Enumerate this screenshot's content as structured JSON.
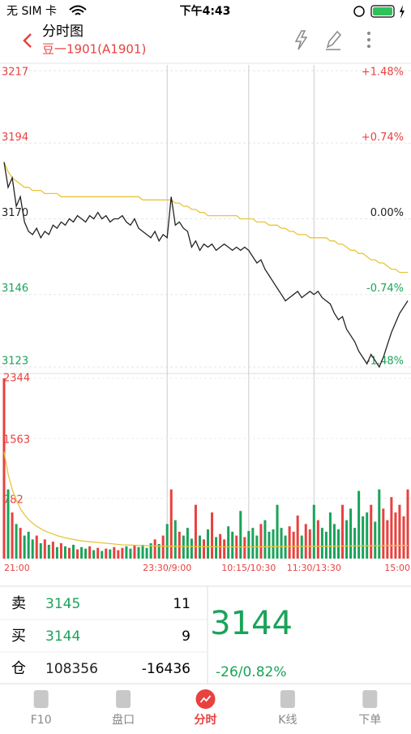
{
  "status_bar": {
    "carrier": "无 SIM 卡",
    "time": "下午4:43"
  },
  "header": {
    "title": "分时图",
    "subtitle": "豆一1901(A1901)"
  },
  "chart": {
    "ylim": [
      3123,
      3217
    ],
    "yticks": [
      3217,
      3194,
      3170,
      3146,
      3123
    ],
    "pct_labels": [
      "+1.48%",
      "+0.74%",
      "0.00%",
      "-0.74%",
      "-1.48%"
    ],
    "tick_colors": [
      "#e8413e",
      "#e8413e",
      "#222222",
      "#1aa35a",
      "#1aa35a"
    ],
    "xticks": [
      {
        "value": 0,
        "label": "21:00"
      },
      {
        "value": 40,
        "label": "23:30/9:00"
      },
      {
        "value": 60,
        "label": "10:15/10:30"
      },
      {
        "value": 76,
        "label": "11:30/13:30"
      },
      {
        "value": 99,
        "label": "15:00"
      }
    ],
    "price_color": "#222222",
    "avg_color": "#e8c53a",
    "up_color": "#e8413e",
    "down_color": "#1aa35a",
    "price": [
      3188,
      3180,
      3183,
      3174,
      3177,
      3169,
      3166,
      3165,
      3167,
      3164,
      3166,
      3165,
      3168,
      3167,
      3169,
      3168,
      3170,
      3169,
      3171,
      3170,
      3169,
      3171,
      3170,
      3172,
      3170,
      3171,
      3169,
      3170,
      3170,
      3171,
      3169,
      3168,
      3170,
      3167,
      3166,
      3165,
      3164,
      3166,
      3163,
      3165,
      3164,
      3177,
      3168,
      3169,
      3167,
      3166,
      3161,
      3163,
      3160,
      3162,
      3161,
      3162,
      3160,
      3161,
      3162,
      3161,
      3160,
      3161,
      3160,
      3161,
      3160,
      3158,
      3156,
      3157,
      3154,
      3152,
      3150,
      3148,
      3146,
      3144,
      3145,
      3146,
      3147,
      3145,
      3146,
      3147,
      3146,
      3147,
      3145,
      3144,
      3143,
      3140,
      3138,
      3139,
      3135,
      3133,
      3131,
      3128,
      3126,
      3124,
      3127,
      3125,
      3123,
      3126,
      3130,
      3134,
      3137,
      3140,
      3142,
      3144
    ],
    "avg": [
      3188,
      3185,
      3183,
      3182,
      3181,
      3180,
      3180,
      3179,
      3179,
      3179,
      3178,
      3178,
      3178,
      3178,
      3177,
      3177,
      3177,
      3177,
      3177,
      3177,
      3177,
      3177,
      3177,
      3177,
      3177,
      3177,
      3177,
      3177,
      3177,
      3177,
      3177,
      3177,
      3177,
      3177,
      3176,
      3176,
      3176,
      3176,
      3176,
      3176,
      3176,
      3176,
      3175,
      3175,
      3174,
      3174,
      3173,
      3173,
      3172,
      3172,
      3171,
      3171,
      3171,
      3171,
      3171,
      3171,
      3171,
      3171,
      3170,
      3170,
      3170,
      3170,
      3169,
      3169,
      3169,
      3168,
      3168,
      3168,
      3167,
      3167,
      3166,
      3166,
      3165,
      3165,
      3165,
      3164,
      3164,
      3164,
      3164,
      3164,
      3163,
      3163,
      3162,
      3162,
      3161,
      3160,
      3160,
      3159,
      3159,
      3158,
      3157,
      3157,
      3156,
      3156,
      3155,
      3154,
      3154,
      3153,
      3153,
      3153
    ],
    "vlim": [
      0,
      2344
    ],
    "vticks": [
      2344,
      1563,
      782
    ],
    "volume": [
      2344,
      900,
      600,
      450,
      400,
      300,
      350,
      250,
      300,
      200,
      250,
      180,
      220,
      150,
      200,
      160,
      140,
      180,
      120,
      150,
      130,
      160,
      110,
      140,
      100,
      130,
      120,
      150,
      110,
      140,
      160,
      130,
      170,
      150,
      180,
      140,
      200,
      250,
      190,
      300,
      450,
      900,
      500,
      350,
      300,
      400,
      260,
      700,
      300,
      250,
      380,
      600,
      280,
      320,
      250,
      420,
      350,
      300,
      620,
      280,
      360,
      400,
      300,
      450,
      500,
      350,
      380,
      700,
      400,
      300,
      420,
      350,
      560,
      300,
      450,
      380,
      700,
      500,
      400,
      350,
      600,
      450,
      380,
      700,
      500,
      650,
      400,
      880,
      550,
      600,
      700,
      480,
      900,
      650,
      500,
      800,
      600,
      700,
      550,
      900
    ],
    "vol_avg": [
      1390,
      1100,
      900,
      760,
      650,
      570,
      510,
      460,
      420,
      390,
      360,
      340,
      320,
      300,
      285,
      270,
      260,
      250,
      240,
      230,
      225,
      220,
      215,
      210,
      205,
      200,
      195,
      190,
      185,
      180,
      178,
      176,
      174,
      172,
      170,
      168,
      166,
      164,
      162,
      160,
      160,
      162,
      160,
      158,
      158,
      157,
      156,
      156,
      155,
      155,
      155,
      154,
      154,
      153,
      153,
      153,
      152,
      152,
      152,
      152,
      152,
      153,
      153,
      154,
      154,
      155,
      155,
      156,
      156,
      157,
      157,
      158,
      158,
      159,
      159,
      160,
      160,
      161,
      161,
      162,
      162,
      163,
      163,
      164,
      164,
      165,
      165,
      166,
      166,
      167,
      167,
      168,
      168,
      169,
      169,
      170,
      170,
      170,
      171,
      171
    ]
  },
  "quote": {
    "rows": [
      [
        "卖",
        "3145",
        "11"
      ],
      [
        "买",
        "3144",
        "9"
      ],
      [
        "仓",
        "108356",
        "-16436"
      ]
    ],
    "last": "3144",
    "change": "-26/0.82%"
  },
  "tabs": [
    "F10",
    "盘口",
    "分时",
    "K线",
    "下单"
  ]
}
